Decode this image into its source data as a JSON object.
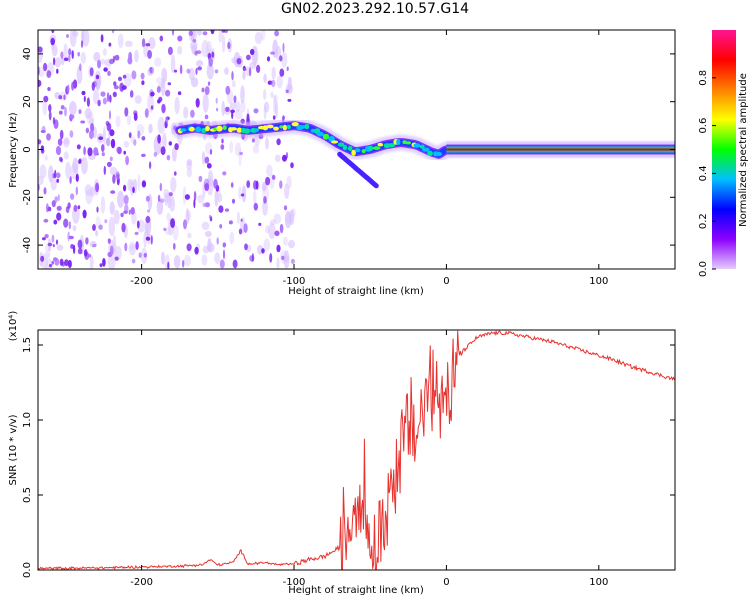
{
  "title": "GN02.2023.292.10.57.G14",
  "chart_data": [
    {
      "type": "heatmap",
      "title": "GN02.2023.292.10.57.G14",
      "xlabel": "Height of straight line (km)",
      "ylabel": "Frequency (Hz)",
      "xlim": [
        -268,
        150
      ],
      "ylim": [
        -50,
        50
      ],
      "x_ticks": [
        -200,
        -100,
        0,
        100
      ],
      "y_ticks": [
        -40,
        -20,
        0,
        20,
        40
      ],
      "colorbar": {
        "label": "Normalized spectral amplitude",
        "range": [
          0,
          1
        ],
        "ticks": [
          "0.0",
          "0.2",
          "0.4",
          "0.6",
          "0.8"
        ],
        "colormap": [
          "#e6ccff",
          "#8b00ff",
          "#0000ff",
          "#00bfff",
          "#00ff00",
          "#ffff00",
          "#ff8000",
          "#ff0000",
          "#ff1493"
        ]
      },
      "noise_region_x": [
        -268,
        -100
      ],
      "ridge": {
        "x": [
          -175,
          -165,
          -155,
          -140,
          -130,
          -115,
          -100,
          -90,
          -80,
          -70,
          -60,
          -50,
          -40,
          -30,
          -20,
          -10,
          -5,
          0,
          50,
          100,
          150
        ],
        "y": [
          8,
          9,
          8,
          9,
          8,
          9,
          10,
          9,
          6,
          2,
          -1,
          0,
          2,
          3,
          2,
          -1,
          -2,
          0,
          0,
          0,
          0
        ]
      },
      "grid": false
    },
    {
      "type": "line",
      "xlabel": "Height of straight line (km)",
      "ylabel": "SNR (10 * v/v)",
      "y_multiplier": "(x10⁴)",
      "xlim": [
        -268,
        150
      ],
      "ylim": [
        0,
        16000
      ],
      "x_ticks": [
        -200,
        -100,
        0,
        100
      ],
      "y_ticks": [
        0,
        5000,
        10000,
        15000
      ],
      "y_tick_labels": [
        "0.0",
        "0.5",
        "1.0",
        "1.5"
      ],
      "color": "#e8322e",
      "series": [
        {
          "x": [
            -268,
            -250,
            -225,
            -200,
            -175,
            -160,
            -155,
            -150,
            -140,
            -135,
            -130,
            -120,
            -110,
            -100,
            -90,
            -80,
            -70,
            -65,
            -60,
            -55,
            -50,
            -45,
            -40,
            -35,
            -30,
            -25,
            -20,
            -15,
            -10,
            -5,
            0,
            5,
            10,
            15,
            20,
            30,
            40,
            50,
            60,
            70,
            80,
            90,
            100,
            110,
            120,
            130,
            140,
            150
          ],
          "y": [
            100,
            120,
            150,
            200,
            260,
            350,
            700,
            330,
            500,
            1300,
            400,
            500,
            350,
            400,
            700,
            900,
            1500,
            2500,
            4500,
            6000,
            1500,
            800,
            4000,
            6000,
            8000,
            9500,
            9000,
            11000,
            12000,
            11500,
            12500,
            13500,
            14500,
            15000,
            15500,
            15800,
            15800,
            15600,
            15400,
            15200,
            14900,
            14600,
            14300,
            14000,
            13600,
            13300,
            13000,
            12700
          ]
        }
      ],
      "grid": false
    }
  ]
}
